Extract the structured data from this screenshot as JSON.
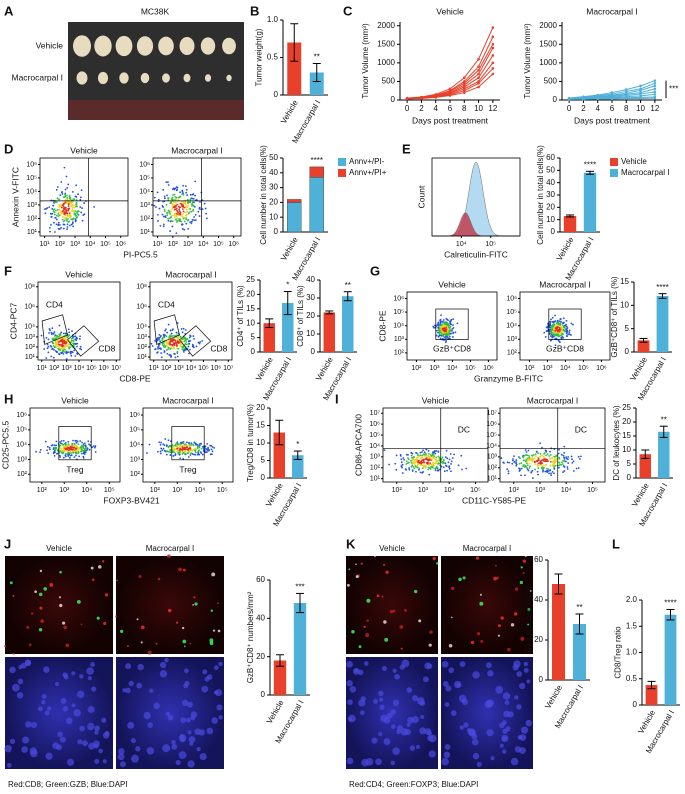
{
  "figure": {
    "panel_letters": [
      "A",
      "B",
      "C",
      "D",
      "E",
      "F",
      "G",
      "H",
      "I",
      "J",
      "K",
      "L"
    ],
    "panel_a": {
      "title": "MC38K",
      "rows": [
        "Vehicle",
        "Macrocarpal I"
      ]
    },
    "panel_j": {
      "columns": [
        "Vehicle",
        "Macrocarpal I"
      ],
      "caption": "Red:CD8; Green:GZB; Blue:DAPI"
    },
    "panel_k": {
      "columns": [
        "Vehicle",
        "Macrocarpal I"
      ],
      "caption": "Red:CD4; Green:FOXP3; Blue:DAPI"
    }
  },
  "chart_data": [
    {
      "type": "bar",
      "ylabel": "Tumor weight(g)",
      "categories": [
        "Vehicle",
        "Macrocarpal I"
      ],
      "values": [
        0.7,
        0.3
      ],
      "errors": [
        0.25,
        0.12
      ],
      "colors": [
        "#e8402a",
        "#4fb0d8"
      ],
      "ylim": [
        0,
        1.0
      ],
      "yticks": [
        0,
        0.5,
        {
          "value": 1,
          "label": "1.0"
        }
      ],
      "significance": "**"
    },
    {
      "type": "line",
      "title": "Vehicle",
      "xlabel": "Days post treatment",
      "ylabel": "Tumor Volume (mm³)",
      "color": "#e8402a",
      "x": [
        0,
        2,
        4,
        6,
        8,
        10,
        12
      ],
      "xlim": [
        -1,
        13
      ],
      "xticks": [
        0,
        2,
        4,
        6,
        8,
        10,
        12
      ],
      "ylim": [
        0,
        2100
      ],
      "yticks": [
        0,
        500,
        1000,
        1500,
        2000
      ],
      "series": [
        {
          "values": [
            50,
            80,
            150,
            300,
            600,
            1100,
            1950
          ]
        },
        {
          "values": [
            50,
            70,
            130,
            250,
            500,
            900,
            1700
          ]
        },
        {
          "values": [
            40,
            70,
            120,
            230,
            450,
            800,
            1500
          ]
        },
        {
          "values": [
            50,
            60,
            110,
            200,
            400,
            700,
            1400
          ]
        },
        {
          "values": [
            40,
            60,
            100,
            180,
            350,
            600,
            1200
          ]
        },
        {
          "values": [
            30,
            50,
            90,
            160,
            300,
            500,
            1000
          ]
        },
        {
          "values": [
            40,
            50,
            80,
            140,
            250,
            450,
            850
          ]
        },
        {
          "values": [
            30,
            40,
            70,
            120,
            200,
            350,
            700
          ]
        }
      ]
    },
    {
      "type": "line",
      "title": "Macrocarpal I",
      "xlabel": "Days post treatment",
      "ylabel": "Tumor Volume (mm³)",
      "color": "#4fb0d8",
      "x": [
        0,
        2,
        4,
        6,
        8,
        10,
        12
      ],
      "xlim": [
        -1,
        13
      ],
      "xticks": [
        0,
        2,
        4,
        6,
        8,
        10,
        12
      ],
      "ylim": [
        0,
        2100
      ],
      "yticks": [
        0,
        500,
        1000,
        1500,
        2000
      ],
      "significance": "***",
      "series": [
        {
          "values": [
            50,
            90,
            130,
            200,
            280,
            380,
            520
          ]
        },
        {
          "values": [
            50,
            80,
            110,
            160,
            230,
            300,
            450
          ]
        },
        {
          "values": [
            40,
            70,
            90,
            130,
            180,
            260,
            380
          ]
        },
        {
          "values": [
            40,
            60,
            80,
            110,
            150,
            200,
            300
          ]
        },
        {
          "values": [
            30,
            50,
            60,
            90,
            120,
            160,
            220
          ]
        },
        {
          "values": [
            30,
            40,
            50,
            70,
            90,
            110,
            150
          ]
        },
        {
          "values": [
            20,
            30,
            40,
            50,
            60,
            70,
            80
          ]
        },
        {
          "values": [
            20,
            20,
            30,
            30,
            40,
            40,
            50
          ]
        }
      ]
    },
    {
      "type": "flow",
      "xlabel": "PI-PC5.5",
      "ylabel": "Annexin V-FITC",
      "gate": "quadrant",
      "log": true,
      "xlim": [
        5,
        3000000
      ],
      "ylim": [
        5,
        3000000
      ],
      "xticks": [
        {
          "value": 10,
          "label": "10¹"
        },
        {
          "value": 100,
          "label": "10²"
        },
        {
          "value": 1000,
          "label": "10³"
        },
        {
          "value": 10000,
          "label": "10⁴"
        },
        {
          "value": 100000,
          "label": "10⁵"
        },
        {
          "value": 1000000,
          "label": "10⁶"
        }
      ],
      "yticks": [
        {
          "value": 10,
          "label": "10¹"
        },
        {
          "value": 100,
          "label": "10²"
        },
        {
          "value": 1000,
          "label": "10³"
        },
        {
          "value": 10000,
          "label": "10⁴"
        },
        {
          "value": 100000,
          "label": "10⁵"
        },
        {
          "value": 1000000,
          "label": "10⁶"
        }
      ],
      "plots": [
        {
          "title": "Vehicle"
        },
        {
          "title": "Macrocarpal I"
        }
      ]
    },
    {
      "type": "bar",
      "ylabel": "Cell number in total cells(%)",
      "categories": [
        "Vehicle",
        "Macrocarpal I"
      ],
      "stacked": true,
      "legend": "right",
      "ylim": [
        0,
        50
      ],
      "yticks": [
        0,
        10,
        20,
        30,
        40,
        50
      ],
      "significance": "****",
      "series": [
        {
          "name": "Annv+/PI-",
          "color": "#4fb0d8",
          "values": [
            20,
            37
          ]
        },
        {
          "name": "Annv+/PI+",
          "color": "#e8402a",
          "values": [
            2,
            7
          ]
        }
      ]
    },
    {
      "type": "flowhist",
      "xlabel": "Calreticulin-FITC",
      "ylabel": "Count",
      "log": true,
      "xlim": [
        1000,
        1000000
      ],
      "xticks": [
        {
          "value": 10000,
          "label": "10⁴"
        },
        {
          "value": 100000,
          "label": "10⁵"
        }
      ]
    },
    {
      "type": "bar",
      "ylabel": "Cell number in total cells(%)",
      "categories": [
        "Vehicle",
        "Macrocarpal I"
      ],
      "values": [
        13,
        48
      ],
      "errors": [
        0.8,
        1.2
      ],
      "colors": [
        "#e8402a",
        "#4fb0d8"
      ],
      "legend": "right",
      "ylim": [
        0,
        60
      ],
      "yticks": [
        0,
        10,
        20,
        30,
        40,
        50,
        60
      ],
      "significance": "****"
    },
    {
      "type": "flow",
      "xlabel": "CD8-PE",
      "ylabel": "CD4-PC7",
      "gate": "polygon",
      "log": true,
      "xlim": [
        5,
        20000000
      ],
      "ylim": [
        5,
        300000000
      ],
      "xticks": [
        {
          "value": 10,
          "label": "10¹"
        },
        {
          "value": 100,
          "label": "10²"
        },
        {
          "value": 1000,
          "label": "10³"
        },
        {
          "value": 10000,
          "label": "10⁴"
        },
        {
          "value": 100000,
          "label": "10⁵"
        },
        {
          "value": 1000000,
          "label": "10⁶"
        },
        {
          "value": 10000000,
          "label": "10⁷"
        }
      ],
      "yticks": [
        {
          "value": 10,
          "label": "10¹"
        },
        {
          "value": 100,
          "label": "10²"
        },
        {
          "value": 1000,
          "label": "10³"
        },
        {
          "value": 10000,
          "label": "10⁴"
        },
        {
          "value": 1000000,
          "label": "10⁶"
        },
        {
          "value": 100000000,
          "label": "10⁸"
        }
      ],
      "plots": [
        {
          "title": "Vehicle",
          "gates": [
            "CD4",
            "CD8"
          ]
        },
        {
          "title": "Macrocarpal I",
          "gates": [
            "CD4",
            "CD8"
          ]
        }
      ]
    },
    {
      "type": "bar",
      "ylabel": "CD4⁺ of TILs (%)",
      "categories": [
        "Vehicle",
        "Macrocarpal I"
      ],
      "values": [
        10,
        17
      ],
      "errors": [
        1.5,
        4
      ],
      "colors": [
        "#e8402a",
        "#4fb0d8"
      ],
      "ylim": [
        0,
        25
      ],
      "yticks": [
        0,
        5,
        10,
        15,
        20,
        25
      ],
      "significance": "*"
    },
    {
      "type": "bar",
      "ylabel": "CD8⁺ of TILs (%)",
      "categories": [
        "Vehicle",
        "Macrocarpal I"
      ],
      "values": [
        22,
        31
      ],
      "errors": [
        0.8,
        2.5
      ],
      "colors": [
        "#e8402a",
        "#4fb0d8"
      ],
      "ylim": [
        0,
        40
      ],
      "yticks": [
        0,
        10,
        20,
        30,
        40
      ],
      "significance": "**"
    },
    {
      "type": "flow",
      "xlabel": "Granzyme B-FITC",
      "ylabel": "CD8-PE",
      "gate": "box",
      "log": true,
      "xlim": [
        30,
        3000000
      ],
      "ylim": [
        30,
        3000000
      ],
      "xticks": [
        {
          "value": 100,
          "label": "10²"
        },
        {
          "value": 1000,
          "label": "10³"
        },
        {
          "value": 10000,
          "label": "10⁴"
        },
        {
          "value": 100000,
          "label": "10⁵"
        },
        {
          "value": 1000000,
          "label": "10⁶"
        }
      ],
      "yticks": [
        {
          "value": 100,
          "label": "10²"
        },
        {
          "value": 1000,
          "label": "10³"
        },
        {
          "value": 10000,
          "label": "10⁴"
        },
        {
          "value": 100000,
          "label": "10⁵"
        },
        {
          "value": 1000000,
          "label": "10⁶"
        }
      ],
      "plots": [
        {
          "title": "Vehicle",
          "gates": [
            "GzB⁺CD8"
          ]
        },
        {
          "title": "Macrocarpal I",
          "gates": [
            "GzB⁺CD8"
          ]
        }
      ]
    },
    {
      "type": "bar",
      "ylabel": "GzB⁺CD8⁺ of TILs (%)",
      "categories": [
        "Vehicle",
        "Macrocarpal I"
      ],
      "values": [
        2.5,
        12
      ],
      "errors": [
        0.4,
        0.5
      ],
      "colors": [
        "#e8402a",
        "#4fb0d8"
      ],
      "ylim": [
        0,
        15
      ],
      "yticks": [
        0,
        5,
        10,
        15
      ],
      "significance": "****"
    },
    {
      "type": "flow",
      "xlabel": "FOXP3-BV421",
      "ylabel": "CD25-PC5.5",
      "gate": "box",
      "log": true,
      "xlim": [
        30,
        300000
      ],
      "ylim": [
        30,
        3000000
      ],
      "xticks": [
        {
          "value": 100,
          "label": "10²"
        },
        {
          "value": 1000,
          "label": "10³"
        },
        {
          "value": 10000,
          "label": "10⁴"
        },
        {
          "value": 100000,
          "label": "10⁵"
        }
      ],
      "yticks": [
        {
          "value": 100,
          "label": "10²"
        },
        {
          "value": 1000,
          "label": "10³"
        },
        {
          "value": 10000,
          "label": "10⁴"
        },
        {
          "value": 100000,
          "label": "10⁵"
        },
        {
          "value": 1000000,
          "label": "10⁶"
        }
      ],
      "plots": [
        {
          "title": "Vehicle",
          "gates": [
            "Treg"
          ]
        },
        {
          "title": "Macrocarpal I",
          "gates": [
            "Treg"
          ]
        }
      ]
    },
    {
      "type": "bar",
      "ylabel": "Treg/CD8 in tumor(%)",
      "categories": [
        "Vehicle",
        "Macrocarpal I"
      ],
      "values": [
        13,
        6.5
      ],
      "errors": [
        3.5,
        1.2
      ],
      "colors": [
        "#e8402a",
        "#4fb0d8"
      ],
      "ylim": [
        0,
        20
      ],
      "yticks": [
        0,
        5,
        10,
        15,
        20
      ],
      "significance": "*"
    },
    {
      "type": "flow",
      "xlabel": "CD11C-Y585-PE",
      "ylabel": "CD86-APCA700",
      "gate": "quadrant",
      "log": true,
      "xlim": [
        30,
        300000
      ],
      "ylim": [
        5,
        30000000
      ],
      "xticks": [
        {
          "value": 100,
          "label": "10²"
        },
        {
          "value": 1000,
          "label": "10³"
        },
        {
          "value": 10000,
          "label": "10⁴"
        },
        {
          "value": 100000,
          "label": "10⁵"
        }
      ],
      "yticks": [
        {
          "value": 10,
          "label": "10¹"
        },
        {
          "value": 100,
          "label": "10²"
        },
        {
          "value": 1000,
          "label": "10³"
        },
        {
          "value": 10000,
          "label": "10⁴"
        },
        {
          "value": 100000,
          "label": "10⁵"
        },
        {
          "value": 1000000,
          "label": "10⁶"
        },
        {
          "value": 10000000,
          "label": "10⁷"
        }
      ],
      "plots": [
        {
          "title": "Vehicle",
          "gates": [
            "DC"
          ]
        },
        {
          "title": "Macrocarpal I",
          "gates": [
            "DC"
          ]
        }
      ]
    },
    {
      "type": "bar",
      "ylabel": "DC of leukocytes (%)",
      "categories": [
        "Vehicle",
        "Macrocarpal I"
      ],
      "values": [
        8.5,
        16.5
      ],
      "errors": [
        1.5,
        2
      ],
      "colors": [
        "#e8402a",
        "#4fb0d8"
      ],
      "ylim": [
        0,
        25
      ],
      "yticks": [
        0,
        5,
        10,
        15,
        20,
        25
      ],
      "significance": "**"
    },
    {
      "type": "bar",
      "ylabel": "GzB⁺CD8⁺ numbers/mm²",
      "categories": [
        "Vehicle",
        "Macrocarpal I"
      ],
      "values": [
        18,
        48
      ],
      "errors": [
        3,
        5
      ],
      "colors": [
        "#e8402a",
        "#4fb0d8"
      ],
      "ylim": [
        0,
        60
      ],
      "yticks": [
        0,
        20,
        40,
        60
      ],
      "significance": "***"
    },
    {
      "type": "bar",
      "ylabel": "Treg numbers/mm²",
      "categories": [
        "Vehicle",
        "Macrocarpal I"
      ],
      "values": [
        48,
        28
      ],
      "errors": [
        5,
        5
      ],
      "colors": [
        "#e8402a",
        "#4fb0d8"
      ],
      "ylim": [
        0,
        60
      ],
      "yticks": [
        0,
        20,
        40,
        60
      ],
      "significance": "**"
    },
    {
      "type": "bar",
      "ylabel": "CD8/Treg ratio",
      "categories": [
        "Vehicle",
        "Macrocarpal I"
      ],
      "values": [
        0.38,
        1.72
      ],
      "errors": [
        0.07,
        0.1
      ],
      "colors": [
        "#e8402a",
        "#4fb0d8"
      ],
      "ylim": [
        0,
        2.0
      ],
      "yticks": [
        0,
        0.5,
        {
          "value": 1,
          "label": "1.0"
        },
        1.5,
        {
          "value": 2,
          "label": "2.0"
        }
      ],
      "significance": "****"
    }
  ]
}
